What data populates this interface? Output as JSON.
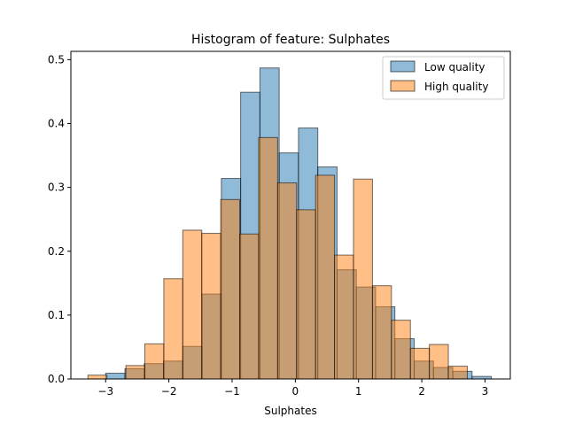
{
  "chart_data": {
    "type": "bar",
    "title": "Histogram of feature: Sulphates",
    "xlabel": "Sulphates",
    "ylabel": "",
    "xlim": [
      -3.55,
      3.4
    ],
    "ylim": [
      0,
      0.513
    ],
    "x_ticks": [
      -3,
      -2,
      -1,
      0,
      1,
      2,
      3
    ],
    "y_ticks": [
      0.0,
      0.1,
      0.2,
      0.3,
      0.4,
      0.5
    ],
    "x_tick_labels": [
      "−3",
      "−2",
      "−1",
      "0",
      "1",
      "2",
      "3"
    ],
    "y_tick_labels": [
      "0.0",
      "0.1",
      "0.2",
      "0.3",
      "0.4",
      "0.5"
    ],
    "legend_position": "top-right",
    "series": [
      {
        "name": "Low quality",
        "color": "#1f77b4",
        "bin_edges": [
          -3.0,
          -2.695,
          -2.39,
          -2.085,
          -1.78,
          -1.475,
          -1.17,
          -0.865,
          -0.56,
          -0.255,
          0.05,
          0.355,
          0.66,
          0.965,
          1.27,
          1.575,
          1.88,
          2.185,
          2.49,
          2.795,
          3.1
        ],
        "values": [
          0.009,
          0.016,
          0.024,
          0.028,
          0.051,
          0.133,
          0.314,
          0.449,
          0.487,
          0.354,
          0.393,
          0.332,
          0.171,
          0.144,
          0.113,
          0.063,
          0.028,
          0.018,
          0.012,
          0.004
        ]
      },
      {
        "name": "High quality",
        "color": "#ff7f0e",
        "bin_edges": [
          -3.28,
          -2.98,
          -2.68,
          -2.38,
          -2.08,
          -1.78,
          -1.48,
          -1.18,
          -0.88,
          -0.58,
          -0.28,
          0.02,
          0.32,
          0.62,
          0.92,
          1.22,
          1.52,
          1.82,
          2.12,
          2.42,
          2.72
        ],
        "values": [
          0.006,
          0.0,
          0.021,
          0.055,
          0.157,
          0.233,
          0.228,
          0.281,
          0.227,
          0.378,
          0.307,
          0.265,
          0.319,
          0.194,
          0.313,
          0.146,
          0.092,
          0.048,
          0.054,
          0.02
        ]
      }
    ]
  }
}
